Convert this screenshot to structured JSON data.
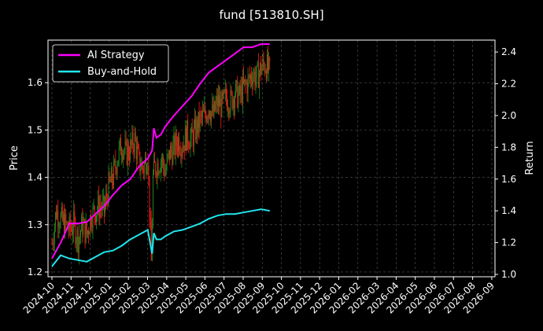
{
  "chart_data": {
    "type": "line",
    "title": "fund [513810.SH]",
    "left_axis": {
      "label": "Price",
      "ylim": [
        1.19,
        1.69
      ],
      "ticks": [
        1.2,
        1.3,
        1.4,
        1.5,
        1.6
      ]
    },
    "right_axis": {
      "label": "Return",
      "ylim": [
        0.985,
        2.475
      ],
      "ticks": [
        1.0,
        1.2,
        1.4,
        1.6,
        1.8,
        2.0,
        2.2,
        2.4
      ]
    },
    "x_ticks": [
      "2024-10",
      "2024-11",
      "2024-12",
      "2025-01",
      "2025-02",
      "2025-03",
      "2025-04",
      "2025-05",
      "2025-06",
      "2025-07",
      "2025-08",
      "2025-09",
      "2025-10",
      "2025-11",
      "2025-12",
      "2026-01",
      "2026-02",
      "2026-03",
      "2026-04",
      "2026-05",
      "2026-06",
      "2026-07",
      "2026-08",
      "2026-09"
    ],
    "grid": true,
    "legend_position": "top-left",
    "colors": {
      "up": "#1f8a1f",
      "down": "#ff1a1a",
      "ai": "#ff00ff",
      "bh": "#22e5ee",
      "grid": "#555555"
    },
    "series": [
      {
        "name": "AI Strategy",
        "axis": "right",
        "x": [
          0,
          10,
          20,
          30,
          40,
          50,
          60,
          70,
          80,
          90,
          100,
          110,
          115,
          117,
          120,
          125,
          130,
          140,
          150,
          160,
          170,
          180,
          190,
          200,
          210,
          220,
          230,
          240,
          250
        ],
        "values": [
          1.1,
          1.2,
          1.32,
          1.32,
          1.33,
          1.38,
          1.43,
          1.5,
          1.56,
          1.6,
          1.68,
          1.73,
          1.78,
          1.92,
          1.86,
          1.88,
          1.93,
          2.0,
          2.06,
          2.12,
          2.2,
          2.27,
          2.31,
          2.35,
          2.39,
          2.43,
          2.43,
          2.45,
          2.45
        ]
      },
      {
        "name": "Buy-and-Hold",
        "axis": "right",
        "x": [
          0,
          10,
          20,
          30,
          40,
          50,
          60,
          70,
          80,
          90,
          100,
          110,
          115,
          117,
          120,
          125,
          130,
          140,
          150,
          160,
          170,
          180,
          190,
          200,
          210,
          220,
          230,
          240,
          250
        ],
        "values": [
          1.05,
          1.12,
          1.1,
          1.09,
          1.08,
          1.11,
          1.14,
          1.15,
          1.18,
          1.22,
          1.25,
          1.28,
          1.13,
          1.26,
          1.22,
          1.22,
          1.24,
          1.27,
          1.28,
          1.3,
          1.32,
          1.35,
          1.37,
          1.38,
          1.38,
          1.39,
          1.4,
          1.41,
          1.4
        ]
      },
      {
        "name": "price",
        "axis": "left",
        "x": [
          0,
          5,
          10,
          15,
          20,
          25,
          30,
          35,
          40,
          45,
          50,
          55,
          60,
          65,
          70,
          75,
          80,
          85,
          90,
          95,
          100,
          105,
          110,
          114,
          116,
          118,
          122,
          126,
          130,
          135,
          140,
          145,
          150,
          155,
          160,
          165,
          170,
          175,
          180,
          185,
          190,
          195,
          200,
          205,
          210,
          215,
          220,
          225,
          230,
          235,
          240,
          245,
          250
        ],
        "values": [
          1.26,
          1.33,
          1.31,
          1.3,
          1.29,
          1.3,
          1.27,
          1.3,
          1.28,
          1.32,
          1.33,
          1.34,
          1.33,
          1.38,
          1.4,
          1.44,
          1.47,
          1.45,
          1.46,
          1.48,
          1.43,
          1.42,
          1.45,
          1.22,
          1.4,
          1.42,
          1.43,
          1.44,
          1.41,
          1.45,
          1.46,
          1.48,
          1.47,
          1.49,
          1.48,
          1.5,
          1.52,
          1.53,
          1.55,
          1.53,
          1.56,
          1.55,
          1.57,
          1.56,
          1.58,
          1.57,
          1.59,
          1.6,
          1.62,
          1.61,
          1.63,
          1.64,
          1.62
        ]
      }
    ]
  }
}
